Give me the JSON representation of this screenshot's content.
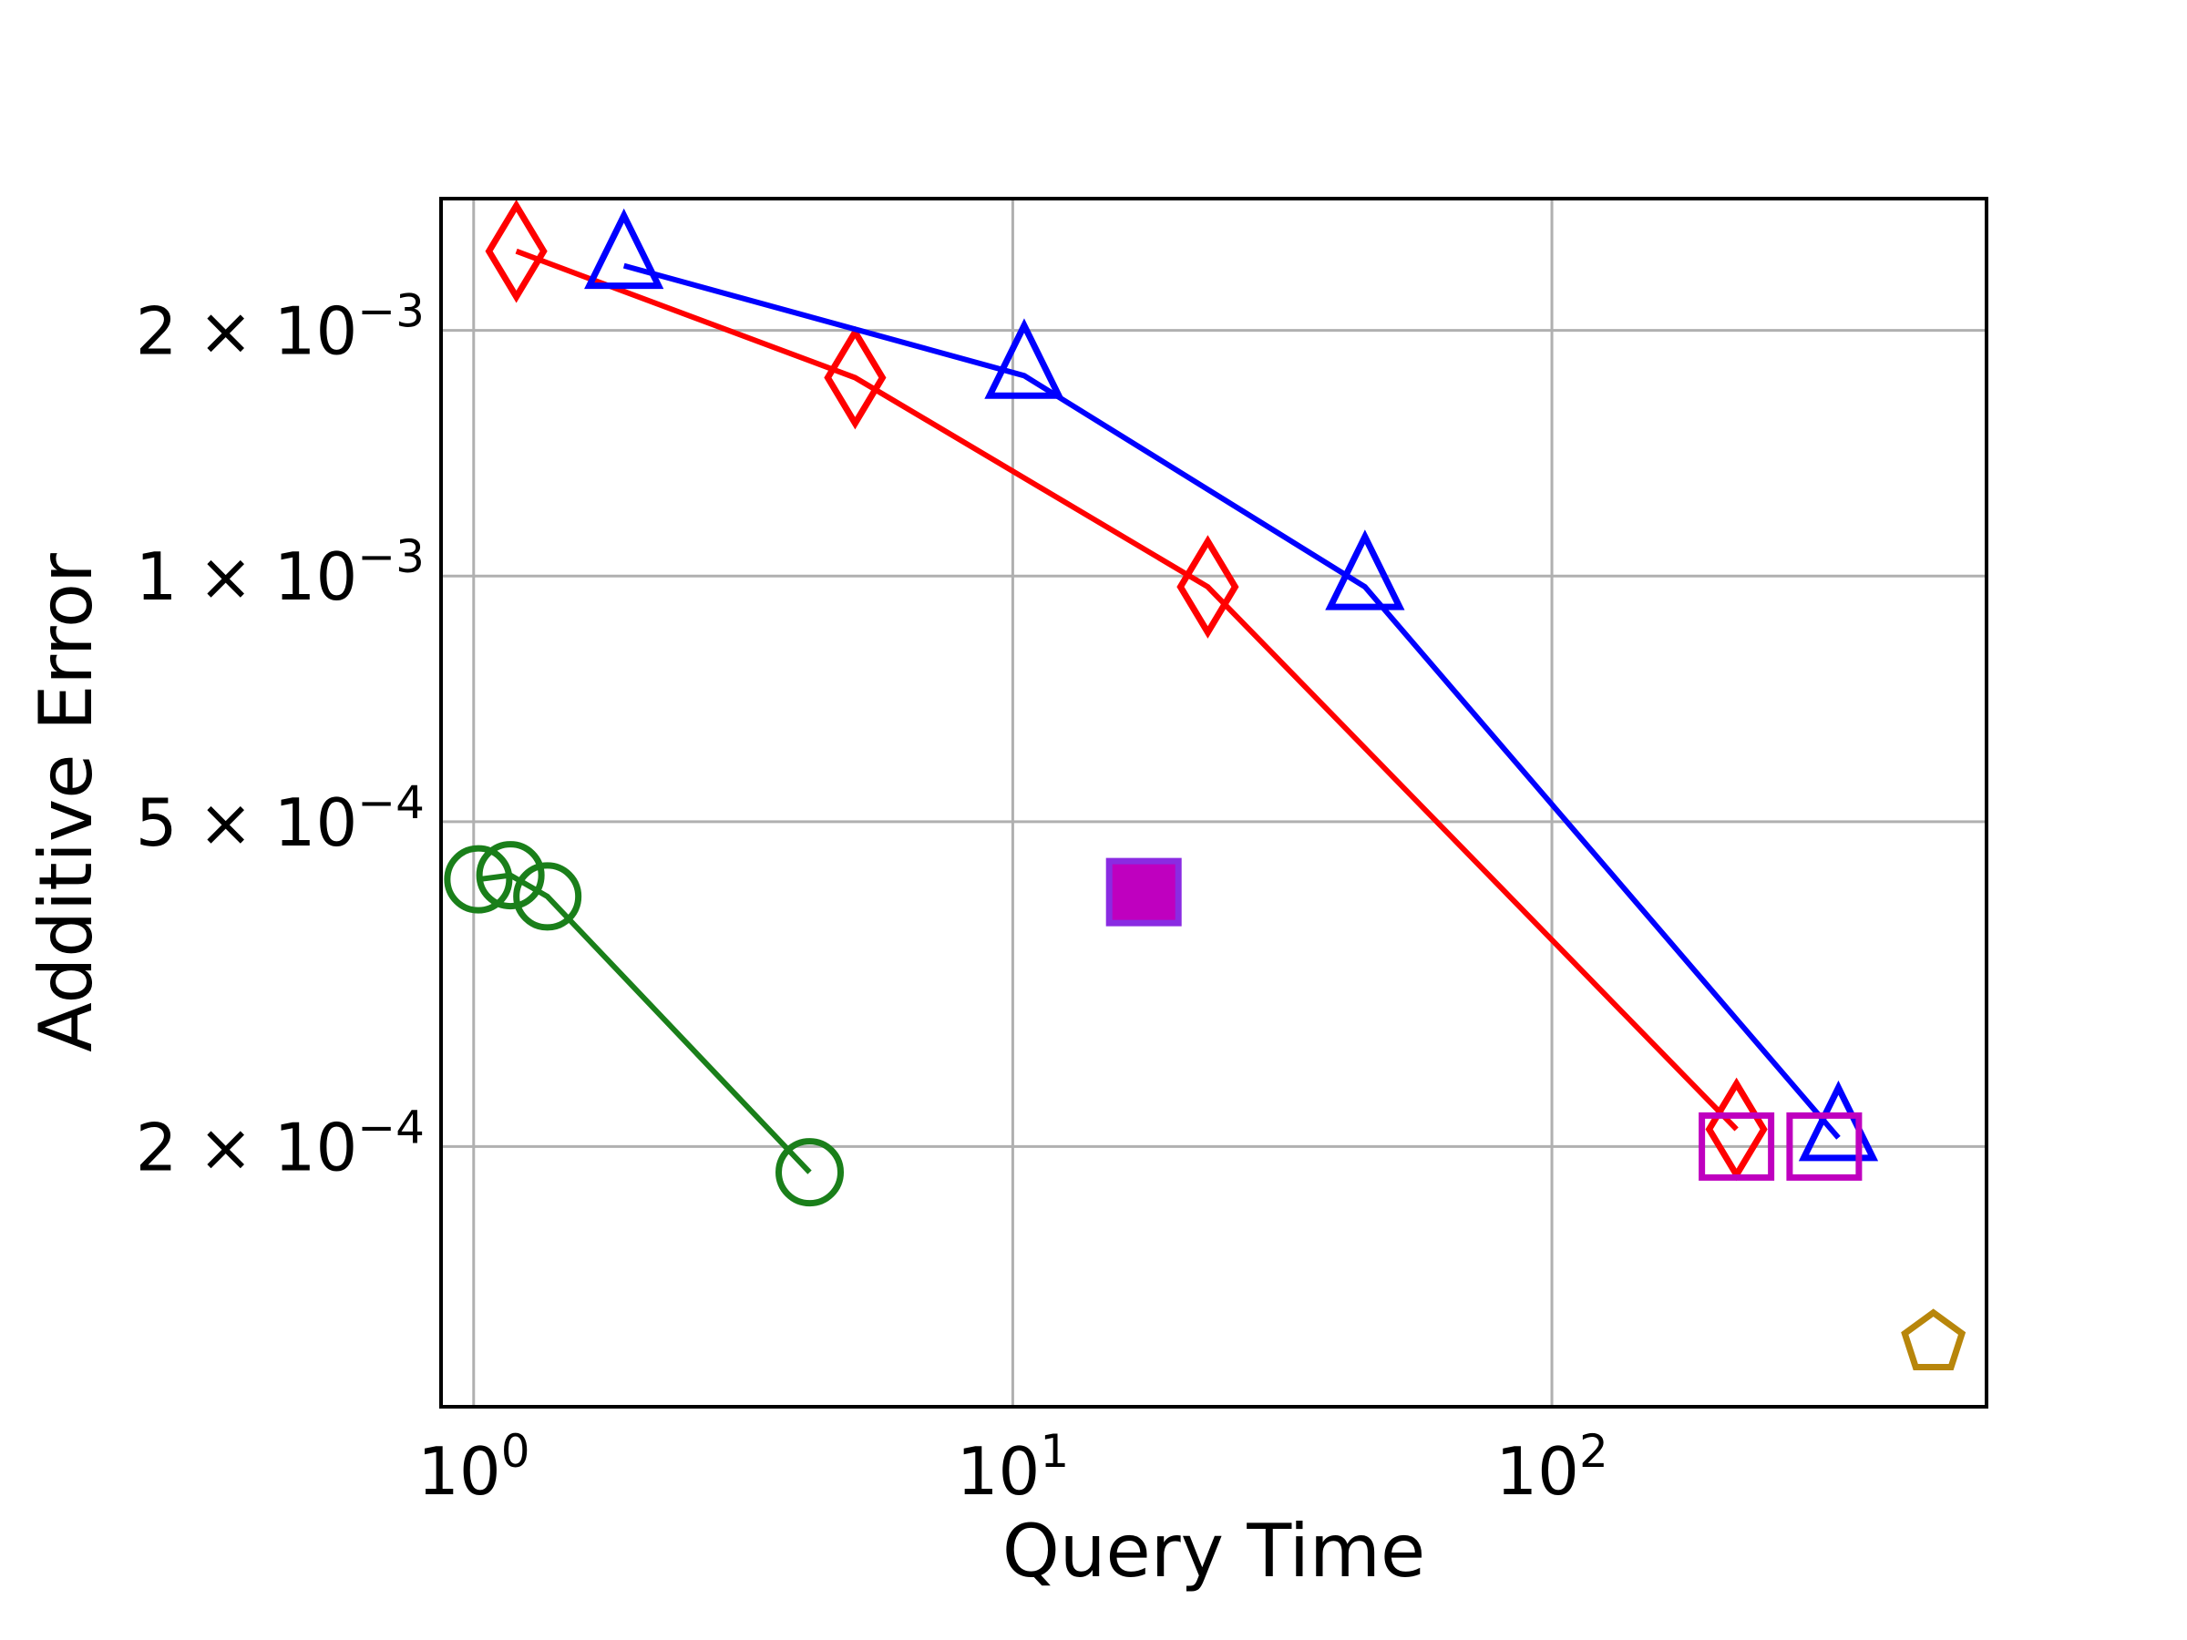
{
  "chart_data": {
    "type": "scatter",
    "title": "",
    "xlabel": "Query Time",
    "ylabel": "Additive Error",
    "xscale": "log",
    "yscale": "log",
    "xlim": [
      0.87,
      640
    ],
    "ylim": [
      9.6e-05,
      0.0029
    ],
    "grid": true,
    "xticks": [
      {
        "value": 1,
        "base": "10",
        "exp": "0"
      },
      {
        "value": 10,
        "base": "10",
        "exp": "1"
      },
      {
        "value": 100,
        "base": "10",
        "exp": "2"
      }
    ],
    "yticks": [
      {
        "value": 0.0002,
        "mant": "2",
        "times": "×",
        "base": "10",
        "exp": "−4"
      },
      {
        "value": 0.0005,
        "mant": "5",
        "times": "×",
        "base": "10",
        "exp": "−4"
      },
      {
        "value": 0.001,
        "mant": "1",
        "times": "×",
        "base": "10",
        "exp": "−3"
      },
      {
        "value": 0.002,
        "mant": "2",
        "times": "×",
        "base": "10",
        "exp": "−3"
      }
    ],
    "series": [
      {
        "color": "#1a7f1a",
        "marker": "circle",
        "line": true,
        "filled": false,
        "points": [
          [
            1.02,
            0.000425
          ],
          [
            1.17,
            0.00043
          ],
          [
            1.37,
            0.000405
          ],
          [
            4.2,
            0.000186
          ]
        ]
      },
      {
        "color": "#ff0000",
        "marker": "diamond",
        "line": true,
        "filled": false,
        "points": [
          [
            1.2,
            0.0025
          ],
          [
            5.1,
            0.00175
          ],
          [
            23.0,
            0.00097
          ],
          [
            220.0,
            0.00021
          ]
        ]
      },
      {
        "color": "#0000ff",
        "marker": "triangle",
        "line": true,
        "filled": false,
        "points": [
          [
            1.9,
            0.0024
          ],
          [
            10.5,
            0.00176
          ],
          [
            45.0,
            0.00097
          ],
          [
            340.0,
            0.000205
          ]
        ]
      },
      {
        "color": "#bf00bf",
        "marker": "square",
        "line": false,
        "filled": false,
        "points": [
          [
            220.0,
            0.0002
          ],
          [
            320.0,
            0.0002
          ]
        ]
      },
      {
        "color": "#bf00bf",
        "edge": "#8a2be2",
        "marker": "square",
        "line": false,
        "filled": true,
        "points": [
          [
            17.5,
            0.00041
          ]
        ]
      },
      {
        "color": "#b8860b",
        "marker": "pentagon",
        "line": false,
        "filled": false,
        "points": [
          [
            510.0,
            0.000115
          ]
        ]
      }
    ]
  }
}
